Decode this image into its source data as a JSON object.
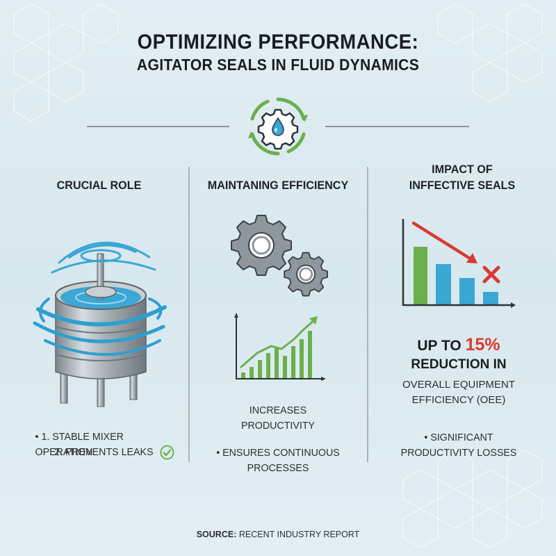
{
  "header": {
    "title": "OPTIMIZING PERFORMANCE:",
    "subtitle": "AGITATOR SEALS IN FLUID DYNAMICS"
  },
  "columns": [
    {
      "heading": "CRUCIAL ROLE",
      "items": [
        "1. STABLE MIXER OPERATION",
        "2. PREVENTS LEAKS"
      ]
    },
    {
      "heading": "MAINTANING EFFICIENCY",
      "text": [
        "INCREASES",
        "PRODUCTIVITY"
      ],
      "items": [
        "ENSURES CONTINUOUS",
        "PROCESSES"
      ]
    },
    {
      "heading_line1": "IMPACT OF",
      "heading_line2": "INFFECTIVE SEALS",
      "stat_prefix": "UP TO",
      "stat_value": "15%",
      "stat_line2": "REDUCTION IN",
      "stat_desc_line1": "OVERALL EQUIPMENT",
      "stat_desc_line2": "EFFICIENCY (OEE)",
      "items": [
        "SIGNIFICANT",
        "PRODUCTIVITY LOSSES"
      ]
    }
  ],
  "source": {
    "label": "SOURCE:",
    "text": "RECENT INDUSTRY REPORT"
  },
  "colors": {
    "accent_green": "#6ab04c",
    "accent_blue": "#3aa7d4",
    "alert_red": "#d93a2f",
    "gear_gray": "#8e979d"
  },
  "icons": [
    "gear-droplet-icon",
    "mixer-tank-icon",
    "gears-icon",
    "growth-bar-chart-icon",
    "decline-bar-chart-icon",
    "check-circle-icon",
    "red-x-icon"
  ]
}
